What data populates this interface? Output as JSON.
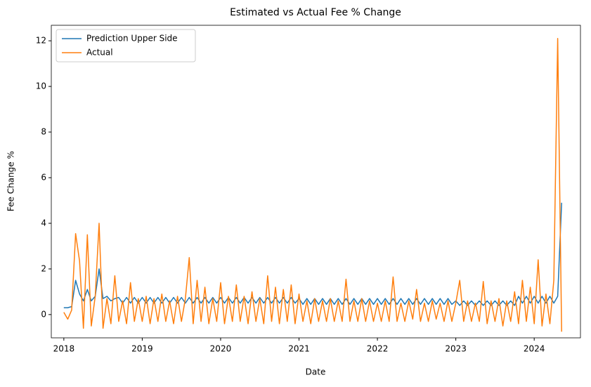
{
  "chart_data": {
    "type": "line",
    "title": "Estimated vs Actual Fee % Change",
    "x_label": "Date",
    "y_label": "Fee Change %",
    "x": [
      2018,
      2018.05,
      2018.1,
      2018.15,
      2018.2,
      2018.25,
      2018.3,
      2018.35,
      2018.4,
      2018.45,
      2018.5,
      2018.55,
      2018.6,
      2018.65,
      2018.7,
      2018.75,
      2018.8,
      2018.85,
      2018.9,
      2018.95,
      2019,
      2019.05,
      2019.1,
      2019.15,
      2019.2,
      2019.25,
      2019.3,
      2019.35,
      2019.4,
      2019.45,
      2019.5,
      2019.55,
      2019.6,
      2019.65,
      2019.7,
      2019.75,
      2019.8,
      2019.85,
      2019.9,
      2019.95,
      2020,
      2020.05,
      2020.1,
      2020.15,
      2020.2,
      2020.25,
      2020.3,
      2020.35,
      2020.4,
      2020.45,
      2020.5,
      2020.55,
      2020.6,
      2020.65,
      2020.7,
      2020.75,
      2020.8,
      2020.85,
      2020.9,
      2020.95,
      2021,
      2021.05,
      2021.1,
      2021.15,
      2021.2,
      2021.25,
      2021.3,
      2021.35,
      2021.4,
      2021.45,
      2021.5,
      2021.55,
      2021.6,
      2021.65,
      2021.7,
      2021.75,
      2021.8,
      2021.85,
      2021.9,
      2021.95,
      2022,
      2022.05,
      2022.1,
      2022.15,
      2022.2,
      2022.25,
      2022.3,
      2022.35,
      2022.4,
      2022.45,
      2022.5,
      2022.55,
      2022.6,
      2022.65,
      2022.7,
      2022.75,
      2022.8,
      2022.85,
      2022.9,
      2022.95,
      2023,
      2023.05,
      2023.1,
      2023.15,
      2023.2,
      2023.25,
      2023.3,
      2023.35,
      2023.4,
      2023.45,
      2023.5,
      2023.55,
      2023.6,
      2023.65,
      2023.7,
      2023.75,
      2023.8,
      2023.85,
      2023.9,
      2023.95,
      2024,
      2024.05,
      2024.1,
      2024.15,
      2024.2,
      2024.25,
      2024.3,
      2024.35
    ],
    "series": [
      {
        "name": "Prediction Upper Side",
        "color": "#1f77b4",
        "values": [
          0.3,
          0.3,
          0.35,
          1.5,
          0.9,
          0.6,
          1.1,
          0.6,
          0.8,
          2.0,
          0.7,
          0.8,
          0.6,
          0.7,
          0.75,
          0.5,
          0.75,
          0.5,
          0.75,
          0.5,
          0.75,
          0.5,
          0.75,
          0.5,
          0.75,
          0.5,
          0.75,
          0.5,
          0.75,
          0.5,
          0.75,
          0.5,
          0.75,
          0.5,
          0.75,
          0.5,
          0.75,
          0.5,
          0.75,
          0.5,
          0.75,
          0.5,
          0.75,
          0.5,
          0.75,
          0.5,
          0.75,
          0.5,
          0.75,
          0.5,
          0.75,
          0.5,
          0.75,
          0.5,
          0.75,
          0.5,
          0.75,
          0.5,
          0.75,
          0.5,
          0.7,
          0.45,
          0.7,
          0.45,
          0.7,
          0.45,
          0.7,
          0.45,
          0.7,
          0.45,
          0.7,
          0.45,
          0.7,
          0.45,
          0.7,
          0.45,
          0.7,
          0.45,
          0.7,
          0.45,
          0.7,
          0.45,
          0.7,
          0.45,
          0.7,
          0.45,
          0.7,
          0.45,
          0.7,
          0.45,
          0.7,
          0.45,
          0.7,
          0.45,
          0.7,
          0.45,
          0.7,
          0.45,
          0.7,
          0.45,
          0.6,
          0.4,
          0.6,
          0.4,
          0.6,
          0.4,
          0.6,
          0.4,
          0.6,
          0.4,
          0.6,
          0.4,
          0.6,
          0.4,
          0.6,
          0.4,
          0.8,
          0.5,
          0.8,
          0.5,
          0.8,
          0.5,
          0.8,
          0.5,
          0.8,
          0.5,
          0.8,
          4.9
        ]
      },
      {
        "name": "Actual",
        "color": "#ff7f0e",
        "values": [
          0.1,
          -0.2,
          0.2,
          3.55,
          2.35,
          -0.6,
          3.5,
          -0.5,
          0.8,
          4.0,
          -0.6,
          0.7,
          -0.4,
          1.7,
          -0.3,
          0.6,
          -0.4,
          1.4,
          -0.3,
          0.7,
          -0.3,
          0.8,
          -0.4,
          0.7,
          -0.3,
          0.9,
          -0.3,
          0.6,
          -0.4,
          0.8,
          -0.3,
          0.7,
          2.5,
          -0.4,
          1.5,
          -0.3,
          1.2,
          -0.4,
          0.7,
          -0.3,
          1.4,
          -0.4,
          0.8,
          -0.3,
          1.3,
          -0.3,
          0.8,
          -0.4,
          1.0,
          -0.3,
          0.7,
          -0.4,
          1.7,
          -0.3,
          1.2,
          -0.4,
          1.1,
          -0.3,
          1.3,
          -0.4,
          0.9,
          -0.3,
          0.6,
          -0.4,
          0.7,
          -0.3,
          0.6,
          -0.3,
          0.7,
          -0.3,
          0.6,
          -0.3,
          1.55,
          -0.3,
          0.6,
          -0.3,
          0.7,
          -0.3,
          0.6,
          -0.3,
          0.5,
          -0.3,
          0.6,
          -0.3,
          1.65,
          -0.3,
          0.5,
          -0.3,
          0.6,
          -0.2,
          1.1,
          -0.3,
          0.5,
          -0.3,
          0.6,
          -0.2,
          0.5,
          -0.3,
          0.6,
          -0.3,
          0.5,
          1.5,
          -0.3,
          0.6,
          -0.3,
          0.5,
          -0.3,
          1.45,
          -0.4,
          0.6,
          -0.3,
          0.7,
          -0.5,
          0.6,
          -0.3,
          1.0,
          -0.4,
          1.5,
          -0.3,
          1.2,
          -0.4,
          2.4,
          -0.5,
          0.9,
          -0.4,
          1.5,
          12.1,
          -0.75
        ]
      }
    ],
    "xlim": [
      2017.84,
      2024.59
    ],
    "xticks": [
      2018,
      2019,
      2020,
      2021,
      2022,
      2023,
      2024
    ],
    "ylim": [
      -1.02,
      12.68
    ],
    "yticks": [
      0,
      2,
      4,
      6,
      8,
      10,
      12
    ],
    "legend": "upper left"
  }
}
